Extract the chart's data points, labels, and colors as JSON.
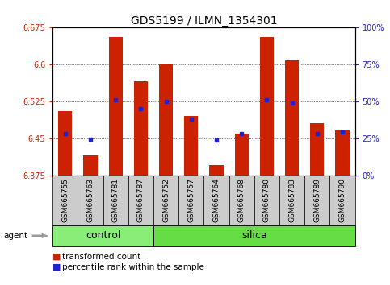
{
  "title": "GDS5199 / ILMN_1354301",
  "samples": [
    "GSM665755",
    "GSM665763",
    "GSM665781",
    "GSM665787",
    "GSM665752",
    "GSM665757",
    "GSM665764",
    "GSM665768",
    "GSM665780",
    "GSM665783",
    "GSM665789",
    "GSM665790"
  ],
  "groups": [
    "control",
    "control",
    "control",
    "control",
    "silica",
    "silica",
    "silica",
    "silica",
    "silica",
    "silica",
    "silica",
    "silica"
  ],
  "n_control": 4,
  "transformed_count": [
    6.505,
    6.415,
    6.655,
    6.565,
    6.6,
    6.495,
    6.395,
    6.46,
    6.655,
    6.607,
    6.48,
    6.465
  ],
  "percentile_rank": [
    6.46,
    6.448,
    6.528,
    6.51,
    6.525,
    6.488,
    6.447,
    6.46,
    6.528,
    6.522,
    6.46,
    6.462
  ],
  "ylim": [
    6.375,
    6.675
  ],
  "yticks_left": [
    6.375,
    6.45,
    6.525,
    6.6,
    6.675
  ],
  "yticks_right_pct": [
    0,
    25,
    50,
    75,
    100
  ],
  "bar_color": "#cc2200",
  "dot_color": "#2222cc",
  "control_color": "#88ee77",
  "silica_color": "#66dd44",
  "ylabel_left_color": "#cc2200",
  "ylabel_right_color": "#2222cc",
  "tick_bg_color": "#cccccc",
  "title_fontsize": 10,
  "tick_fontsize": 7,
  "sample_fontsize": 6.5,
  "group_fontsize": 9,
  "legend_fontsize": 7.5
}
